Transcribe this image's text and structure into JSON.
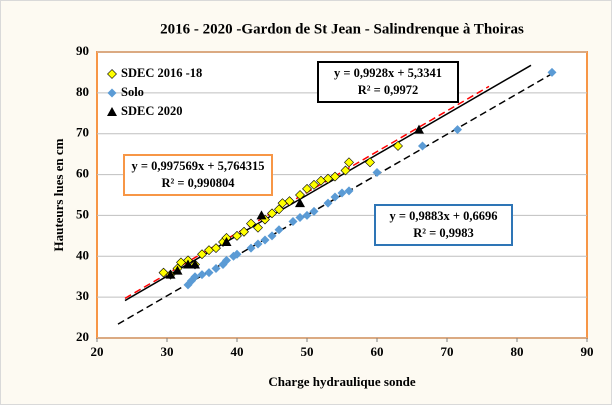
{
  "chart_data": {
    "type": "scatter",
    "title": "2016 - 2020 -Gardon de St Jean - Salindrenque  à Thoiras",
    "x_label": "Charge hydraulique sonde",
    "y_label": "Hauteurs lues en cm",
    "xlim": [
      20,
      90
    ],
    "xticks": [
      20,
      30,
      40,
      50,
      60,
      70,
      80,
      90
    ],
    "ylim": [
      20,
      90
    ],
    "yticks": [
      20,
      30,
      40,
      50,
      60,
      70,
      80,
      90
    ],
    "grid": true,
    "legend": "upper left",
    "series": [
      {
        "name": "SDEC 2016 -18",
        "color": "#ffff00",
        "marker": "diamond",
        "x": [
          29.5,
          30.5,
          31.5,
          32,
          33,
          34,
          35,
          36,
          37,
          38,
          38.5,
          40,
          41,
          42,
          43,
          44,
          45,
          46,
          46.5,
          47.5,
          49,
          50,
          51,
          52,
          53,
          54,
          55.5,
          56,
          59,
          63,
          71
        ],
        "values": [
          36,
          35.5,
          37,
          38.5,
          39,
          38,
          40.5,
          41.5,
          42,
          43.5,
          44.5,
          45,
          46,
          48,
          47,
          49,
          50.5,
          51.5,
          53,
          53.5,
          55,
          56.5,
          57.5,
          58.5,
          59,
          59.5,
          61,
          63,
          63,
          67,
          79
        ]
      },
      {
        "name": "Solo",
        "color": "#5b9bd5",
        "marker": "diamond",
        "x": [
          33,
          33.5,
          34,
          35,
          36,
          37,
          38,
          38.5,
          39.5,
          40,
          42,
          43,
          44,
          45,
          46,
          48,
          49,
          50,
          51,
          53,
          54,
          55,
          56,
          60,
          66.5,
          71.5,
          85
        ],
        "values": [
          33,
          34,
          35,
          35.5,
          36,
          37,
          38,
          39,
          40,
          40.5,
          42,
          43,
          44,
          45,
          46.5,
          48.5,
          49.5,
          50,
          51,
          53,
          54.5,
          55.5,
          56,
          60.5,
          67,
          71,
          85
        ]
      },
      {
        "name": "SDEC 2020",
        "color": "#000000",
        "marker": "triangle",
        "x": [
          30.5,
          31.5,
          33,
          34,
          38.5,
          43.5,
          49,
          66
        ],
        "values": [
          35.5,
          36.5,
          38,
          38,
          43.5,
          50,
          53,
          71
        ]
      }
    ],
    "trendlines": [
      {
        "slope": 0.997569,
        "intercept": 5.764315,
        "x": [
          24,
          76
        ],
        "color": "#ff0000",
        "style": "dashed",
        "equation": "y = 0,997569x + 5,764315",
        "r2": "R² = 0,990804",
        "box_color": "#f79646"
      },
      {
        "slope": 0.9928,
        "intercept": 5.3341,
        "x": [
          24,
          82
        ],
        "color": "#000000",
        "style": "solid",
        "equation": "y = 0,9928x + 5,3341",
        "r2": "R² = 0,9972",
        "box_color": "#000000"
      },
      {
        "slope": 0.9883,
        "intercept": 0.6696,
        "x": [
          23,
          85
        ],
        "color": "#000000",
        "style": "dashed",
        "equation": "y = 0,9883x + 0,6696",
        "r2": "R² = 0,9983",
        "box_color": "#2e75b6"
      }
    ]
  }
}
